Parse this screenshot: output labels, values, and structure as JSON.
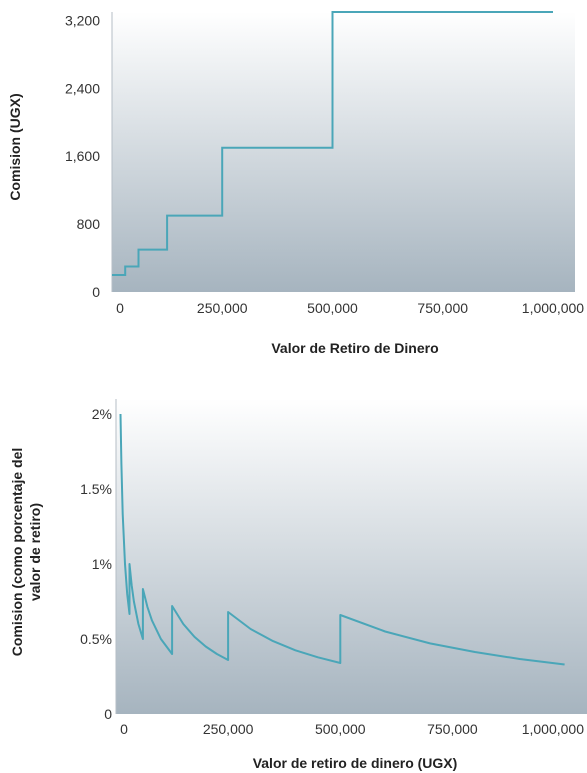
{
  "colors": {
    "line": "#4aa6b8",
    "plot_bg_top": "#ffffff",
    "plot_bg_bottom": "#a6b4bf",
    "axis": "#b5bec6",
    "text": "#333333"
  },
  "chart_data": [
    {
      "type": "line",
      "step": true,
      "xlabel": "Valor de Retiro de Dinero",
      "ylabel": "Comision (UGX)",
      "xlim": [
        0,
        1050000
      ],
      "ylim": [
        0,
        3300
      ],
      "xticks": [
        0,
        250000,
        500000,
        750000,
        1000000
      ],
      "xtick_labels": [
        "0",
        "250,000",
        "500,000",
        "750,000",
        "1,000,000"
      ],
      "yticks": [
        0,
        800,
        1600,
        2400,
        3200
      ],
      "ytick_labels": [
        "0",
        "800",
        "1,600",
        "2,400",
        "3,200"
      ],
      "grid": false,
      "series": [
        {
          "x": [
            0,
            30000,
            30000,
            60000,
            60000,
            125000,
            125000,
            250000,
            250000,
            500000,
            500000,
            1000000
          ],
          "y": [
            200,
            200,
            300,
            300,
            500,
            500,
            900,
            900,
            1700,
            1700,
            3300,
            3300
          ]
        }
      ]
    },
    {
      "type": "line",
      "xlabel": "Valor de retiro de dinero (UGX)",
      "ylabel_lines": [
        "Comision (como porcentaje del",
        "valor de retiro)"
      ],
      "xlim": [
        0,
        1050000
      ],
      "ylim": [
        0,
        2.1
      ],
      "xticks": [
        0,
        250000,
        500000,
        750000,
        1000000
      ],
      "xtick_labels": [
        "0",
        "250,000",
        "500,000",
        "750,000",
        "1,000,000"
      ],
      "yticks": [
        0,
        0.5,
        1,
        1.5,
        2
      ],
      "ytick_labels": [
        "0",
        "0.5%",
        "1%",
        "1.5%",
        "2%"
      ],
      "grid": false,
      "series": [
        {
          "x": [
            10000,
            12000,
            15000,
            20000,
            25000,
            30000,
            30000,
            35000,
            40000,
            50000,
            60000,
            60000,
            70000,
            80000,
            100000,
            125000,
            125000,
            150000,
            175000,
            200000,
            225000,
            250000,
            250000,
            300000,
            350000,
            400000,
            450000,
            500000,
            500000,
            600000,
            700000,
            800000,
            900000,
            1000000
          ],
          "y": [
            2.0,
            1.667,
            1.333,
            1.0,
            0.8,
            0.667,
            1.0,
            0.857,
            0.75,
            0.6,
            0.5,
            0.833,
            0.714,
            0.625,
            0.5,
            0.4,
            0.72,
            0.6,
            0.514,
            0.45,
            0.4,
            0.36,
            0.68,
            0.567,
            0.486,
            0.425,
            0.378,
            0.34,
            0.66,
            0.55,
            0.471,
            0.413,
            0.367,
            0.33
          ]
        }
      ]
    }
  ]
}
